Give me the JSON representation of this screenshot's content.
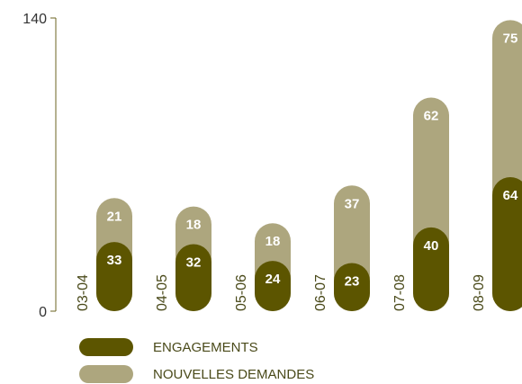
{
  "colors": {
    "engagements": "#5c5500",
    "nouvelles_demandes": "#ada67e",
    "axis": "#6b6320"
  },
  "chart_data": {
    "type": "bar",
    "stacked": true,
    "categories": [
      "03-04",
      "04-05",
      "05-06",
      "06-07",
      "07-08",
      "08-09"
    ],
    "series": [
      {
        "name": "ENGAGEMENTS",
        "values": [
          33,
          32,
          24,
          23,
          40,
          64
        ]
      },
      {
        "name": "NOUVELLES DEMANDES",
        "values": [
          21,
          18,
          18,
          37,
          62,
          75
        ]
      }
    ],
    "ylim": [
      0,
      140
    ],
    "yticks": [
      "0",
      "140"
    ],
    "grid": false,
    "legend": "bottom-left"
  }
}
